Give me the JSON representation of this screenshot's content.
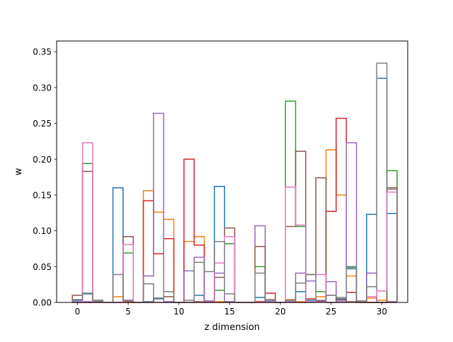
{
  "chart_data": {
    "type": "step-histogram",
    "xlabel": "z dimension",
    "ylabel": "w",
    "xlim": [
      -2.05,
      32.55
    ],
    "ylim": [
      0,
      0.365
    ],
    "xticks": [
      0,
      5,
      10,
      15,
      20,
      25,
      30
    ],
    "yticks": [
      0.0,
      0.05,
      0.1,
      0.15,
      0.2,
      0.25,
      0.3,
      0.35
    ],
    "ytick_labels": [
      "0.00",
      "0.05",
      "0.10",
      "0.15",
      "0.20",
      "0.25",
      "0.30",
      "0.35"
    ],
    "grid": false,
    "series": [
      {
        "color": "#1f77b4",
        "values": [
          0.003,
          0.012,
          0.001,
          0,
          0.16,
          0.003,
          0,
          0.001,
          0.005,
          0.001,
          0,
          0,
          0.01,
          0.002,
          0.162,
          0.001,
          0,
          0,
          0.007,
          0.002,
          0,
          0.003,
          0.015,
          0.003,
          0.001,
          0,
          0.005,
          0.047,
          0.002,
          0.123,
          0.313,
          0.124
        ]
      },
      {
        "color": "#ff7f0e",
        "values": [
          0,
          0,
          0,
          0,
          0.008,
          0.001,
          0,
          0.156,
          0.126,
          0.116,
          0,
          0.085,
          0.092,
          0.002,
          0.001,
          0.001,
          0,
          0,
          0,
          0,
          0,
          0.004,
          0.001,
          0.001,
          0.008,
          0.213,
          0.15,
          0.037,
          0.001,
          0.006,
          0.003,
          0.001
        ]
      },
      {
        "color": "#2ca02c",
        "values": [
          0,
          0.194,
          0.001,
          0,
          0,
          0.069,
          0,
          0,
          0,
          0,
          0,
          0,
          0,
          0,
          0.017,
          0.082,
          0,
          0,
          0.05,
          0,
          0,
          0.281,
          0.106,
          0,
          0.015,
          0,
          0,
          0.05,
          0,
          0,
          0,
          0.184
        ]
      },
      {
        "color": "#d62728",
        "values": [
          0,
          0,
          0,
          0,
          0,
          0,
          0,
          0.142,
          0.068,
          0.089,
          0,
          0.2,
          0.08,
          0,
          0,
          0,
          0,
          0,
          0.001,
          0.013,
          0,
          0,
          0,
          0.005,
          0.002,
          0.127,
          0.257,
          0.014,
          0,
          0,
          0,
          0
        ]
      },
      {
        "color": "#9467bd",
        "values": [
          0.001,
          0.001,
          0,
          0,
          0,
          0.003,
          0,
          0.037,
          0.264,
          0.001,
          0,
          0.044,
          0.063,
          0.002,
          0.041,
          0.001,
          0,
          0,
          0.107,
          0.002,
          0,
          0.001,
          0.041,
          0.03,
          0.001,
          0.029,
          0.002,
          0.223,
          0,
          0.041,
          0,
          0.001
        ]
      },
      {
        "color": "#8c564b",
        "values": [
          0.01,
          0.183,
          0.003,
          0,
          0,
          0.092,
          0,
          0,
          0.006,
          0.008,
          0,
          0,
          0.001,
          0,
          0.035,
          0.104,
          0,
          0,
          0.078,
          0.004,
          0,
          0.106,
          0.211,
          0.039,
          0.174,
          0.01,
          0.004,
          0.001,
          0,
          0,
          0,
          0.16
        ]
      },
      {
        "color": "#e377c2",
        "values": [
          0,
          0.223,
          0,
          0,
          0,
          0.081,
          0,
          0,
          0,
          0,
          0,
          0,
          0,
          0,
          0.055,
          0.092,
          0,
          0,
          0,
          0,
          0,
          0.161,
          0.108,
          0.001,
          0.039,
          0,
          0,
          0,
          0,
          0.008,
          0.016,
          0.154
        ]
      },
      {
        "color": "#7f7f7f",
        "values": [
          0.004,
          0.013,
          0.003,
          0,
          0.039,
          0.002,
          0,
          0.026,
          0.006,
          0.015,
          0,
          0.003,
          0.056,
          0.043,
          0.085,
          0.012,
          0,
          0,
          0.041,
          0.004,
          0,
          0.003,
          0.027,
          0.039,
          0.003,
          0.01,
          0.007,
          0.049,
          0,
          0.022,
          0.334,
          0.158
        ]
      }
    ]
  }
}
